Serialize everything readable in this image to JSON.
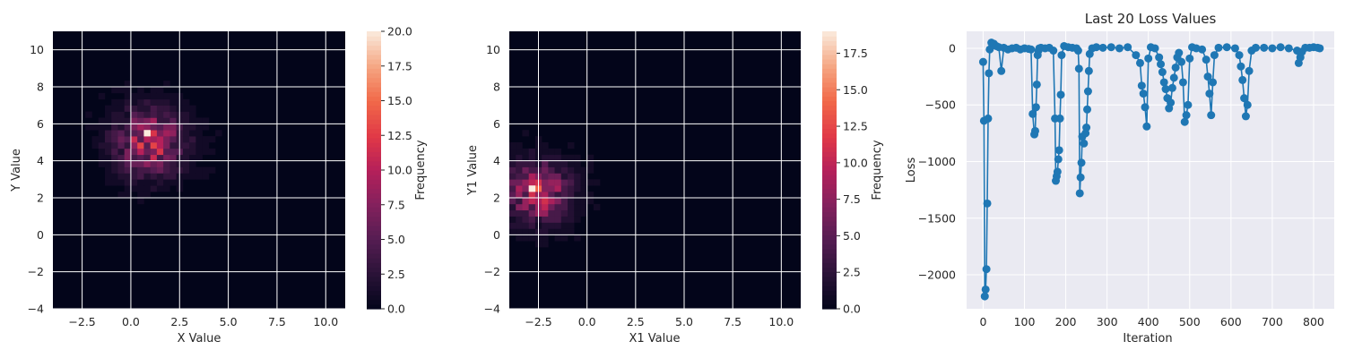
{
  "chart_data": [
    {
      "type": "heatmap",
      "title": "",
      "xlabel": "X Value",
      "ylabel": "Y Value",
      "xlim": [
        -4,
        11
      ],
      "ylim": [
        -4,
        11
      ],
      "xticks": [
        -2.5,
        0.0,
        2.5,
        5.0,
        7.5,
        10.0
      ],
      "xtick_labels": [
        "−2.5",
        "0.0",
        "2.5",
        "5.0",
        "7.5",
        "10.0"
      ],
      "yticks": [
        -4,
        -2,
        0,
        2,
        4,
        6,
        8,
        10
      ],
      "ytick_labels": [
        "−4",
        "−2",
        "0",
        "2",
        "4",
        "6",
        "8",
        "10"
      ],
      "grid": true,
      "bins": [
        45,
        45
      ],
      "distribution": {
        "center_x": 1.0,
        "center_y": 5.0,
        "sigma_x": 1.2,
        "sigma_y": 1.2,
        "peak_x": 0.9,
        "peak_y": 5.5
      },
      "colorbar": {
        "label": "Frequency",
        "min": 0.0,
        "max": 20.0,
        "ticks": [
          0.0,
          2.5,
          5.0,
          7.5,
          10.0,
          12.5,
          15.0,
          17.5,
          20.0
        ],
        "tick_labels": [
          "0.0",
          "2.5",
          "5.0",
          "7.5",
          "10.0",
          "12.5",
          "15.0",
          "17.5",
          "20.0"
        ]
      }
    },
    {
      "type": "heatmap",
      "title": "",
      "xlabel": "X1 Value",
      "ylabel": "Y1 Value",
      "xlim": [
        -4,
        11
      ],
      "ylim": [
        -4,
        11
      ],
      "xticks": [
        -2.5,
        0.0,
        2.5,
        5.0,
        7.5,
        10.0
      ],
      "xtick_labels": [
        "−2.5",
        "0.0",
        "2.5",
        "5.0",
        "7.5",
        "10.0"
      ],
      "yticks": [
        -4,
        -2,
        0,
        2,
        4,
        6,
        8,
        10
      ],
      "ytick_labels": [
        "−4",
        "−2",
        "0",
        "2",
        "4",
        "6",
        "8",
        "10"
      ],
      "grid": true,
      "bins": [
        45,
        45
      ],
      "distribution": {
        "center_x": -2.5,
        "center_y": 2.3,
        "sigma_x": 1.1,
        "sigma_y": 1.1,
        "peak_x": -2.9,
        "peak_y": 2.5
      },
      "colorbar": {
        "label": "Frequency",
        "min": 0.0,
        "max": 19.0,
        "ticks": [
          0.0,
          2.5,
          5.0,
          7.5,
          10.0,
          12.5,
          15.0,
          17.5
        ],
        "tick_labels": [
          "0.0",
          "2.5",
          "5.0",
          "7.5",
          "10.0",
          "12.5",
          "15.0",
          "17.5"
        ]
      }
    },
    {
      "type": "line",
      "title": "Last 20 Loss Values",
      "xlabel": "Iteration",
      "ylabel": "Loss",
      "xlim": [
        -40,
        850
      ],
      "ylim": [
        -2300,
        150
      ],
      "xticks": [
        0,
        100,
        200,
        300,
        400,
        500,
        600,
        700,
        800
      ],
      "xtick_labels": [
        "0",
        "100",
        "200",
        "300",
        "400",
        "500",
        "600",
        "700",
        "800"
      ],
      "yticks": [
        0,
        -500,
        -1000,
        -1500,
        -2000
      ],
      "ytick_labels": [
        "0",
        "−500",
        "−1000",
        "−1500",
        "−2000"
      ],
      "grid": true,
      "background": "#eaeaf2",
      "series": [
        {
          "name": "loss",
          "color": "#1f77b4",
          "marker": "o",
          "x": [
            0,
            2,
            4,
            6,
            8,
            10,
            12,
            14,
            16,
            20,
            26,
            32,
            38,
            44,
            50,
            60,
            70,
            80,
            90,
            100,
            110,
            116,
            120,
            124,
            126,
            128,
            130,
            132,
            134,
            136,
            140,
            150,
            160,
            170,
            174,
            176,
            178,
            180,
            182,
            184,
            186,
            188,
            190,
            196,
            206,
            216,
            226,
            230,
            232,
            234,
            236,
            238,
            240,
            244,
            248,
            250,
            252,
            254,
            256,
            258,
            264,
            274,
            290,
            310,
            330,
            350,
            370,
            380,
            384,
            388,
            392,
            396,
            400,
            406,
            416,
            426,
            430,
            434,
            438,
            442,
            446,
            450,
            454,
            458,
            462,
            466,
            470,
            474,
            480,
            484,
            488,
            492,
            496,
            500,
            506,
            516,
            530,
            540,
            544,
            548,
            552,
            556,
            560,
            570,
            590,
            610,
            620,
            624,
            628,
            632,
            636,
            640,
            644,
            650,
            660,
            680,
            700,
            720,
            740,
            760,
            764,
            768,
            772,
            780,
            790,
            800,
            810,
            815
          ],
          "values": [
            -120,
            -640,
            -2190,
            -2130,
            -1950,
            -1370,
            -620,
            -220,
            -10,
            50,
            40,
            20,
            10,
            -200,
            5,
            -10,
            0,
            5,
            -10,
            0,
            -5,
            -10,
            -580,
            -760,
            -730,
            -520,
            -320,
            -60,
            -20,
            0,
            5,
            0,
            5,
            -20,
            -620,
            -1170,
            -1130,
            -1090,
            -980,
            -900,
            -620,
            -410,
            -60,
            20,
            10,
            5,
            0,
            -20,
            -180,
            -1280,
            -1140,
            -1010,
            -780,
            -840,
            -750,
            -700,
            -540,
            -380,
            -200,
            -50,
            0,
            10,
            5,
            10,
            0,
            10,
            -60,
            -130,
            -330,
            -400,
            -520,
            -690,
            -90,
            10,
            0,
            -80,
            -140,
            -210,
            -300,
            -360,
            -440,
            -530,
            -480,
            -350,
            -260,
            -170,
            -80,
            -40,
            -120,
            -300,
            -650,
            -590,
            -500,
            -90,
            10,
            0,
            -10,
            -100,
            -250,
            -400,
            -590,
            -300,
            -60,
            5,
            10,
            0,
            -60,
            -160,
            -280,
            -440,
            -600,
            -500,
            -200,
            -20,
            5,
            5,
            0,
            10,
            0,
            -20,
            -130,
            -80,
            -30,
            5,
            5,
            10,
            5,
            0
          ]
        }
      ]
    }
  ]
}
